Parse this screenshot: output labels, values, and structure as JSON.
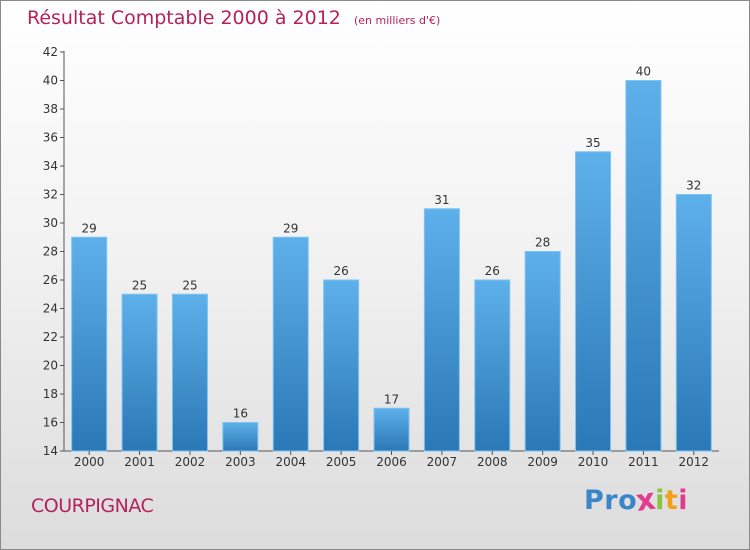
{
  "header": {
    "title": "Résultat Comptable 2000 à 2012",
    "unit": "(en milliers d'€)"
  },
  "commune": "COURPIGNAC",
  "logo": {
    "text": "Proxiti",
    "letters": [
      {
        "char": "P",
        "color": "#3a86c8"
      },
      {
        "char": "r",
        "color": "#3a86c8"
      },
      {
        "char": "o",
        "color": "#3a86c8"
      },
      {
        "char": "x",
        "color": "#e23b8f"
      },
      {
        "char": "i",
        "color": "#8bc53f"
      },
      {
        "char": "t",
        "color": "#f0a019"
      },
      {
        "char": "i",
        "color": "#e23b8f"
      }
    ]
  },
  "chart_data": {
    "type": "bar",
    "title": "Résultat Comptable 2000 à 2012",
    "subtitle": "(en milliers d'€)",
    "categories": [
      "2000",
      "2001",
      "2002",
      "2003",
      "2004",
      "2005",
      "2006",
      "2007",
      "2008",
      "2009",
      "2010",
      "2011",
      "2012"
    ],
    "values": [
      29,
      25,
      25,
      16,
      29,
      26,
      17,
      31,
      26,
      28,
      35,
      40,
      32
    ],
    "ylim": [
      14,
      42
    ],
    "yticks": [
      14,
      16,
      18,
      20,
      22,
      24,
      26,
      28,
      30,
      32,
      34,
      36,
      38,
      40,
      42
    ],
    "grid": false,
    "bar_color_top": "#5eb0ea",
    "bar_color_bottom": "#2a78b6",
    "xlabel": "",
    "ylabel": ""
  }
}
